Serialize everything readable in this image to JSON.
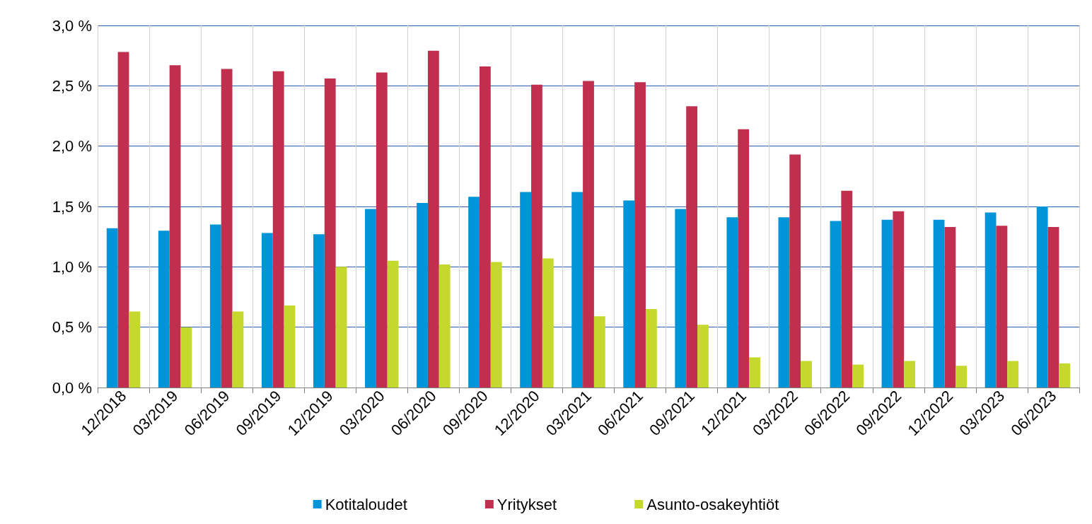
{
  "chart_data": {
    "type": "bar",
    "categories": [
      "12/2018",
      "03/2019",
      "06/2019",
      "09/2019",
      "12/2019",
      "03/2020",
      "06/2020",
      "09/2020",
      "12/2020",
      "03/2021",
      "06/2021",
      "09/2021",
      "12/2021",
      "03/2022",
      "06/2022",
      "09/2022",
      "12/2022",
      "03/2023",
      "06/2023"
    ],
    "series": [
      {
        "name": "Kotitaloudet",
        "color": "#0095d9",
        "values": [
          1.32,
          1.3,
          1.35,
          1.28,
          1.27,
          1.48,
          1.53,
          1.58,
          1.62,
          1.62,
          1.55,
          1.48,
          1.41,
          1.41,
          1.38,
          1.39,
          1.39,
          1.45,
          1.5
        ]
      },
      {
        "name": "Yritykset",
        "color": "#c0304e",
        "values": [
          2.78,
          2.67,
          2.64,
          2.62,
          2.56,
          2.61,
          2.79,
          2.66,
          2.51,
          2.54,
          2.53,
          2.33,
          2.14,
          1.93,
          1.63,
          1.46,
          1.33,
          1.34,
          1.33
        ]
      },
      {
        "name": "Asunto-osakeyhtiöt",
        "color": "#c4d82e",
        "values": [
          0.63,
          0.5,
          0.63,
          0.68,
          1.0,
          1.05,
          1.02,
          1.04,
          1.07,
          0.59,
          0.65,
          0.52,
          0.25,
          0.22,
          0.19,
          0.22,
          0.18,
          0.22,
          0.2
        ]
      }
    ],
    "ylim": [
      0,
      3
    ],
    "yticks": [
      {
        "value": 0,
        "label": "0,0 %"
      },
      {
        "value": 0.5,
        "label": "0,5 %"
      },
      {
        "value": 1,
        "label": "1,0 %"
      },
      {
        "value": 1.5,
        "label": "1,5 %"
      },
      {
        "value": 2,
        "label": "2,0 %"
      },
      {
        "value": 2.5,
        "label": "2,5 %"
      },
      {
        "value": 3,
        "label": "3,0 %"
      }
    ],
    "grid": true,
    "legend": "bottom"
  }
}
